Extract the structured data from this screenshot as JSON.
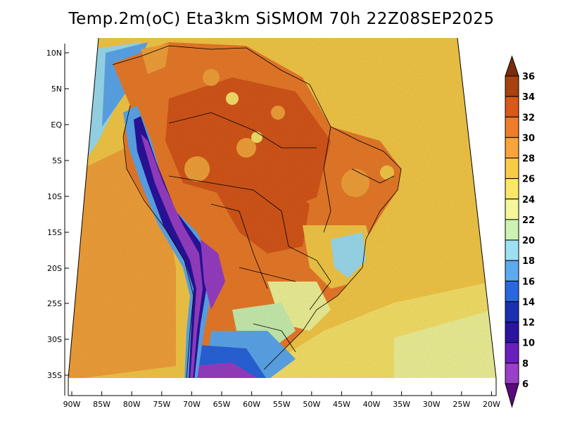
{
  "title": "Temp.2m(oC) Eta3km SiSMOM 70h 22Z08SEP2025",
  "lat_labels": [
    "10N",
    "5N",
    "EQ",
    "5S",
    "10S",
    "15S",
    "20S",
    "25S",
    "30S",
    "35S"
  ],
  "lon_labels": [
    "90W",
    "85W",
    "80W",
    "75W",
    "70W",
    "65W",
    "60W",
    "55W",
    "50W",
    "45W",
    "40W",
    "35W",
    "30W",
    "25W",
    "20W"
  ],
  "colorbar": {
    "labels": [
      "36",
      "34",
      "32",
      "30",
      "28",
      "26",
      "24",
      "22",
      "20",
      "18",
      "16",
      "14",
      "12",
      "10",
      "8",
      "6"
    ],
    "colors": [
      "#7a2e0a",
      "#a8420f",
      "#d9581a",
      "#ee7d2a",
      "#f7a43b",
      "#f9cc48",
      "#fbe66a",
      "#f4f79a",
      "#cdf3b2",
      "#9ee0f3",
      "#5eaaf0",
      "#2a66e0",
      "#1b2fb0",
      "#2a14a0",
      "#6a1fbe",
      "#9b3fc8",
      "#5a0a7a"
    ]
  }
}
